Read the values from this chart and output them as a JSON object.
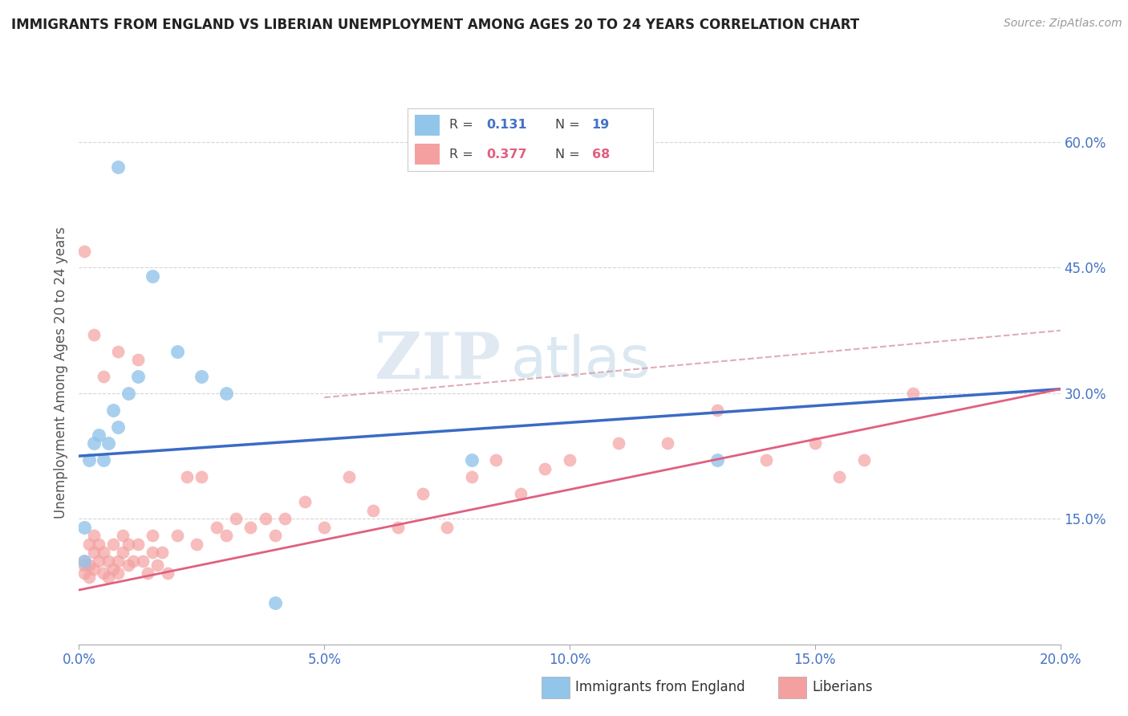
{
  "title": "IMMIGRANTS FROM ENGLAND VS LIBERIAN UNEMPLOYMENT AMONG AGES 20 TO 24 YEARS CORRELATION CHART",
  "source": "Source: ZipAtlas.com",
  "ylabel": "Unemployment Among Ages 20 to 24 years",
  "xlim": [
    0,
    0.2
  ],
  "ylim": [
    0,
    0.65
  ],
  "xticks": [
    0.0,
    0.05,
    0.1,
    0.15,
    0.2
  ],
  "xtick_labels": [
    "0.0%",
    "5.0%",
    "10.0%",
    "15.0%",
    "20.0%"
  ],
  "yticks_right": [
    0.15,
    0.3,
    0.45,
    0.6
  ],
  "ytick_labels_right": [
    "15.0%",
    "30.0%",
    "45.0%",
    "60.0%"
  ],
  "grid_yticks": [
    0.15,
    0.3,
    0.45,
    0.6
  ],
  "color_england": "#92C5EA",
  "color_liberia": "#F4A0A0",
  "color_england_line": "#3A6BC4",
  "color_liberia_line": "#E06080",
  "color_dashed": "#D8A0A8",
  "watermark_zip": "ZIP",
  "watermark_atlas": "atlas",
  "background_color": "#FFFFFF",
  "england_line_x0": 0.0,
  "england_line_y0": 0.225,
  "england_line_x1": 0.2,
  "england_line_y1": 0.305,
  "liberia_line_x0": 0.0,
  "liberia_line_y0": 0.065,
  "liberia_line_x1": 0.2,
  "liberia_line_y1": 0.305,
  "dashed_line_x0": 0.05,
  "dashed_line_y0": 0.295,
  "dashed_line_x1": 0.2,
  "dashed_line_y1": 0.375,
  "england_scatter_x": [
    0.001,
    0.001,
    0.002,
    0.003,
    0.004,
    0.005,
    0.006,
    0.007,
    0.008,
    0.01,
    0.012,
    0.015,
    0.02,
    0.025,
    0.03,
    0.04,
    0.08,
    0.13,
    0.008
  ],
  "england_scatter_y": [
    0.1,
    0.14,
    0.22,
    0.24,
    0.25,
    0.22,
    0.24,
    0.28,
    0.26,
    0.3,
    0.32,
    0.44,
    0.35,
    0.32,
    0.3,
    0.05,
    0.22,
    0.22,
    0.57
  ],
  "liberia_scatter_x": [
    0.001,
    0.001,
    0.001,
    0.002,
    0.002,
    0.002,
    0.003,
    0.003,
    0.003,
    0.004,
    0.004,
    0.005,
    0.005,
    0.006,
    0.006,
    0.007,
    0.007,
    0.008,
    0.008,
    0.009,
    0.009,
    0.01,
    0.01,
    0.011,
    0.012,
    0.013,
    0.014,
    0.015,
    0.015,
    0.016,
    0.017,
    0.018,
    0.02,
    0.022,
    0.024,
    0.025,
    0.028,
    0.03,
    0.032,
    0.035,
    0.038,
    0.04,
    0.042,
    0.046,
    0.05,
    0.055,
    0.06,
    0.065,
    0.07,
    0.075,
    0.08,
    0.085,
    0.09,
    0.095,
    0.1,
    0.11,
    0.12,
    0.13,
    0.14,
    0.15,
    0.155,
    0.16,
    0.17,
    0.001,
    0.003,
    0.005,
    0.008,
    0.012
  ],
  "liberia_scatter_y": [
    0.085,
    0.095,
    0.1,
    0.08,
    0.095,
    0.12,
    0.09,
    0.11,
    0.13,
    0.1,
    0.12,
    0.085,
    0.11,
    0.08,
    0.1,
    0.09,
    0.12,
    0.1,
    0.085,
    0.11,
    0.13,
    0.095,
    0.12,
    0.1,
    0.12,
    0.1,
    0.085,
    0.11,
    0.13,
    0.095,
    0.11,
    0.085,
    0.13,
    0.2,
    0.12,
    0.2,
    0.14,
    0.13,
    0.15,
    0.14,
    0.15,
    0.13,
    0.15,
    0.17,
    0.14,
    0.2,
    0.16,
    0.14,
    0.18,
    0.14,
    0.2,
    0.22,
    0.18,
    0.21,
    0.22,
    0.24,
    0.24,
    0.28,
    0.22,
    0.24,
    0.2,
    0.22,
    0.3,
    0.47,
    0.37,
    0.32,
    0.35,
    0.34
  ]
}
